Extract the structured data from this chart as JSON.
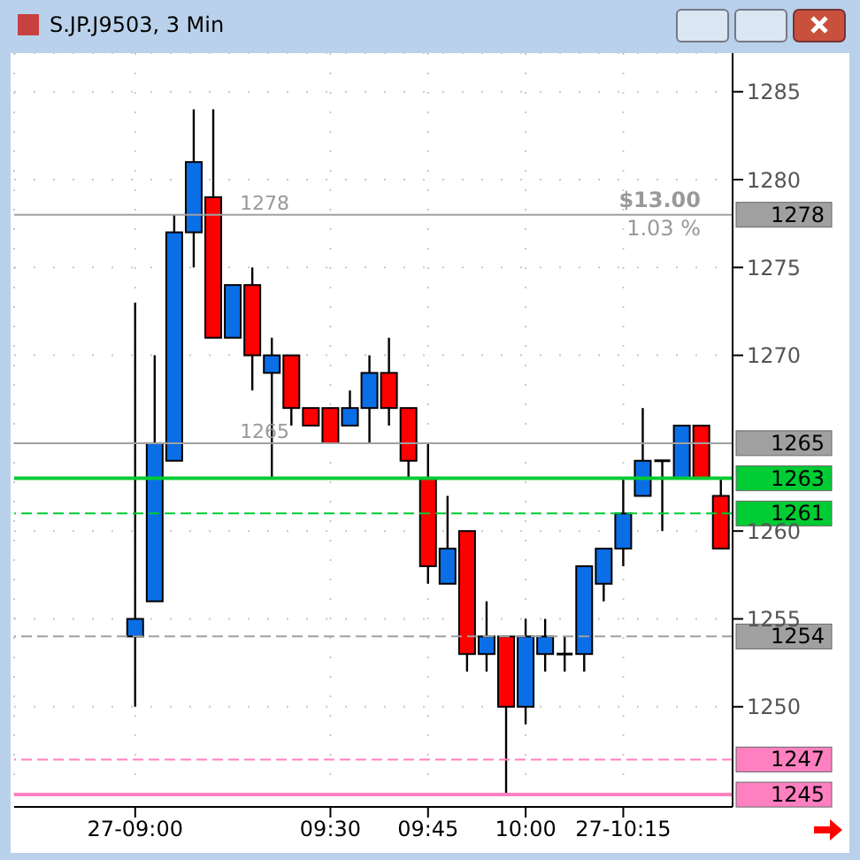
{
  "chart_data": {
    "type": "candlestick",
    "title": "S.JP.J9503, 3 Min",
    "x": [
      9,
      9.05,
      9.1,
      9.15,
      9.2,
      9.25,
      9.3,
      9.35,
      9.4,
      9.45,
      9.5,
      9.55,
      9.6,
      9.65,
      9.7,
      9.75,
      9.8,
      9.85,
      9.9,
      9.95,
      10,
      10.05,
      10.1,
      10.15,
      10.2,
      10.25,
      10.3,
      10.35,
      10.4,
      10.45,
      10.5
    ],
    "ohlc": [
      [
        1254,
        1273,
        1250,
        1255
      ],
      [
        1256,
        1270,
        1256,
        1265
      ],
      [
        1264,
        1278,
        1264,
        1277
      ],
      [
        1277,
        1284,
        1275,
        1281
      ],
      [
        1279,
        1284,
        1271,
        1271
      ],
      [
        1271,
        1274,
        1271,
        1274
      ],
      [
        1274,
        1275,
        1268,
        1270
      ],
      [
        1269,
        1271,
        1263,
        1270
      ],
      [
        1270,
        1270,
        1266,
        1267
      ],
      [
        1267,
        1267,
        1266,
        1266
      ],
      [
        1267,
        1267,
        1265,
        1265
      ],
      [
        1266,
        1268,
        1266,
        1267
      ],
      [
        1267,
        1270,
        1265,
        1269
      ],
      [
        1269,
        1271,
        1266,
        1267
      ],
      [
        1267,
        1267,
        1263,
        1264
      ],
      [
        1263,
        1265,
        1257,
        1258
      ],
      [
        1257,
        1262,
        1257,
        1259
      ],
      [
        1260,
        1260,
        1252,
        1253
      ],
      [
        1253,
        1256,
        1252,
        1254
      ],
      [
        1254,
        1254,
        1245,
        1250
      ],
      [
        1250,
        1255,
        1249,
        1254
      ],
      [
        1253,
        1255,
        1252,
        1254
      ],
      [
        1253,
        1254,
        1252,
        1253
      ],
      [
        1253,
        1258,
        1252,
        1258
      ],
      [
        1257,
        1259,
        1256,
        1259
      ],
      [
        1259,
        1263,
        1258,
        1261
      ],
      [
        1262,
        1267,
        1262,
        1264
      ],
      [
        1264,
        1264,
        1260,
        1264
      ],
      [
        1263,
        1266,
        1263,
        1266
      ],
      [
        1266,
        1266,
        1263,
        1263
      ],
      [
        1262,
        1263,
        1259,
        1259
      ]
    ],
    "colors": [
      "#0a6ee6",
      "#0a6ee6",
      "#0a6ee6",
      "#0a6ee6",
      "#ff0000",
      "#0a6ee6",
      "#ff0000",
      "#0a6ee6",
      "#ff0000",
      "#ff0000",
      "#ff0000",
      "#0a6ee6",
      "#0a6ee6",
      "#ff0000",
      "#ff0000",
      "#ff0000",
      "#0a6ee6",
      "#ff0000",
      "#0a6ee6",
      "#ff0000",
      "#0a6ee6",
      "#0a6ee6",
      "#000000",
      "#0a6ee6",
      "#0a6ee6",
      "#0a6ee6",
      "#0a6ee6",
      "#000000",
      "#0a6ee6",
      "#ff0000",
      "#ff0000"
    ],
    "xlim": [
      8.69,
      10.53
    ],
    "xticks": [
      {
        "value": 9,
        "label": "27-09:00"
      },
      {
        "value": 9.5,
        "label": "09:30"
      },
      {
        "value": 9.75,
        "label": "09:45"
      },
      {
        "value": 10,
        "label": "10:00"
      },
      {
        "value": 10.25,
        "label": "27-10:15"
      }
    ],
    "ylim": [
      1244.3,
      1287.2
    ],
    "yticks": [
      1250,
      1255,
      1260,
      1270,
      1275,
      1280,
      1285
    ],
    "grid": true,
    "ref_lines": [
      {
        "axis": "y",
        "value": 1278,
        "label": "1278",
        "color": "#a0a0a0",
        "line_style": "solid"
      },
      {
        "axis": "y",
        "value": 1265,
        "label": "1265",
        "color": "#a0a0a0",
        "line_style": "solid"
      },
      {
        "axis": "y",
        "value": 1263,
        "label": "1263",
        "color": "#00cc33",
        "line_style": "solid"
      },
      {
        "axis": "y",
        "value": 1261,
        "label": "1261",
        "color": "#00cc33",
        "line_style": "dashed"
      },
      {
        "axis": "y",
        "value": 1254,
        "label": "1254",
        "color": "#a0a0a0",
        "line_style": "dashed"
      },
      {
        "axis": "y",
        "value": 1247,
        "label": "1247",
        "color": "#ff80c0",
        "line_style": "dashed"
      },
      {
        "axis": "y",
        "value": 1245,
        "label": "1245",
        "color": "#ff80c0",
        "line_style": "solid"
      }
    ],
    "annotations": [
      "$13.00",
      "1.03 %",
      {
        "text": "1278",
        "x": 9.25,
        "y": 1278
      },
      {
        "text": "1265",
        "x": 9.25,
        "y": 1265
      }
    ]
  }
}
